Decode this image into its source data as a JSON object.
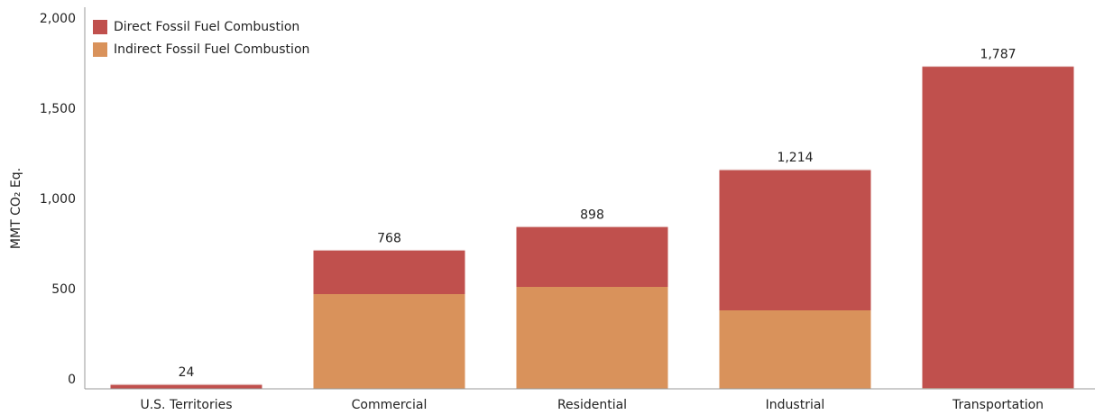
{
  "chart_data": {
    "type": "stacked_bar",
    "y_label": "MMT CO₂ Eq.",
    "categories": [
      "U.S. Territories",
      "Commercial",
      "Residential",
      "Industrial",
      "Transportation"
    ],
    "series": [
      {
        "name": "Indirect Fossil Fuel Combustion",
        "color": "#d9925b",
        "values": [
          0,
          525,
          565,
          435,
          4
        ]
      },
      {
        "name": "Direct Fossil Fuel Combustion",
        "color": "#c0504d",
        "values": [
          24,
          243,
          333,
          779,
          1783
        ]
      }
    ],
    "totals": [
      24,
      768,
      898,
      1214,
      1787
    ],
    "total_labels": [
      "24",
      "768",
      "898",
      "1,214",
      "1,787"
    ],
    "ylim": [
      0,
      2000
    ],
    "yticks": [
      0,
      500,
      {
        "value": 1000,
        "label": "1,000"
      },
      {
        "value": 1500,
        "label": "1,500"
      },
      {
        "value": 2000,
        "label": "2,000"
      }
    ],
    "legend_order": [
      1,
      0
    ],
    "legend": "upper left"
  }
}
